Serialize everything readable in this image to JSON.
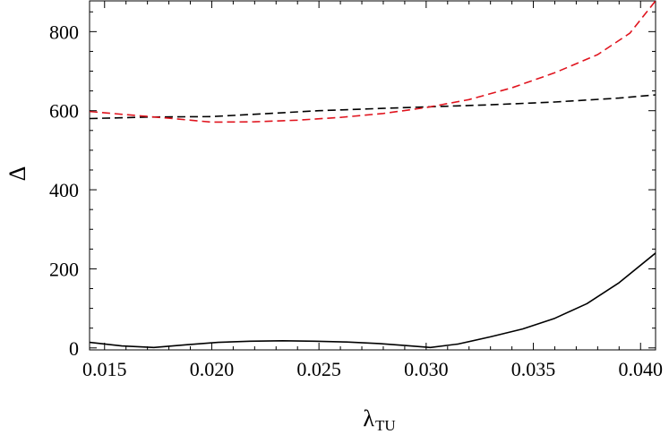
{
  "chart_data": {
    "type": "line",
    "xlabel": "λ",
    "xlabel_sub": "TU",
    "ylabel": "Δ",
    "xlim": [
      0.0143,
      0.0407
    ],
    "ylim": [
      -5,
      880
    ],
    "x_ticks": [
      0.015,
      0.02,
      0.025,
      0.03,
      0.035,
      0.04
    ],
    "x_tick_labels": [
      "0.015",
      "0.020",
      "0.025",
      "0.030",
      "0.035",
      "0.040"
    ],
    "y_ticks": [
      0,
      200,
      400,
      600,
      800
    ],
    "y_tick_labels": [
      "0",
      "200",
      "400",
      "600",
      "800"
    ],
    "grid": false,
    "series": [
      {
        "color": "#000000",
        "dash": "solid",
        "points": [
          [
            0.0143,
            14
          ],
          [
            0.0158,
            5
          ],
          [
            0.0173,
            1
          ],
          [
            0.0188,
            8
          ],
          [
            0.0203,
            14
          ],
          [
            0.0218,
            17
          ],
          [
            0.0233,
            18
          ],
          [
            0.0248,
            17
          ],
          [
            0.0263,
            15
          ],
          [
            0.0278,
            11
          ],
          [
            0.029,
            6
          ],
          [
            0.0302,
            1
          ],
          [
            0.0315,
            10
          ],
          [
            0.033,
            28
          ],
          [
            0.0345,
            48
          ],
          [
            0.036,
            75
          ],
          [
            0.0375,
            112
          ],
          [
            0.039,
            165
          ],
          [
            0.0407,
            240
          ]
        ]
      },
      {
        "color": "#000000",
        "dash": "dashed",
        "points": [
          [
            0.0143,
            580
          ],
          [
            0.017,
            584
          ],
          [
            0.02,
            585
          ],
          [
            0.022,
            591
          ],
          [
            0.025,
            600
          ],
          [
            0.028,
            606
          ],
          [
            0.0302,
            610
          ],
          [
            0.033,
            615
          ],
          [
            0.036,
            622
          ],
          [
            0.039,
            632
          ],
          [
            0.0407,
            640
          ]
        ]
      },
      {
        "color": "#e0141e",
        "dash": "dashed",
        "points": [
          [
            0.0143,
            598
          ],
          [
            0.016,
            590
          ],
          [
            0.018,
            581
          ],
          [
            0.02,
            571
          ],
          [
            0.022,
            572
          ],
          [
            0.024,
            576
          ],
          [
            0.026,
            583
          ],
          [
            0.028,
            593
          ],
          [
            0.03,
            608
          ],
          [
            0.032,
            628
          ],
          [
            0.034,
            658
          ],
          [
            0.036,
            696
          ],
          [
            0.038,
            742
          ],
          [
            0.0395,
            796
          ],
          [
            0.0407,
            878
          ]
        ]
      }
    ]
  }
}
